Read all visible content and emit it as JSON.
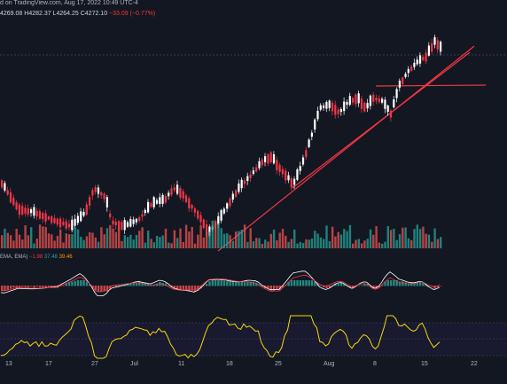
{
  "header": {
    "source_line": "d on TradingView.com, Aug 17, 2022 10:49 UTC-4",
    "ohlc": {
      "open": "4269.08",
      "high": "H4282.37",
      "low": "L4264.25",
      "close": "C4272.10",
      "change": "−33.09 (−0.77%)"
    }
  },
  "macd_legend": {
    "label": "EMA, EMA)",
    "hist": "−1.98",
    "macd": "37.48",
    "signal": "39.46"
  },
  "x_axis": {
    "ticks": [
      "13",
      "17",
      "27",
      "Jul",
      "11",
      "18",
      "25",
      "Aug",
      "8",
      "15",
      "22"
    ]
  },
  "colors": {
    "background": "#131722",
    "bull": "#ffffff",
    "bear": "#f23645",
    "trendline": "#f23645",
    "volume_bull": "#26a69a",
    "volume_bear": "#ef5350",
    "rsi_line": "#f5d90a",
    "macd_line": "#ffffff",
    "signal_line": "#f23645"
  }
}
